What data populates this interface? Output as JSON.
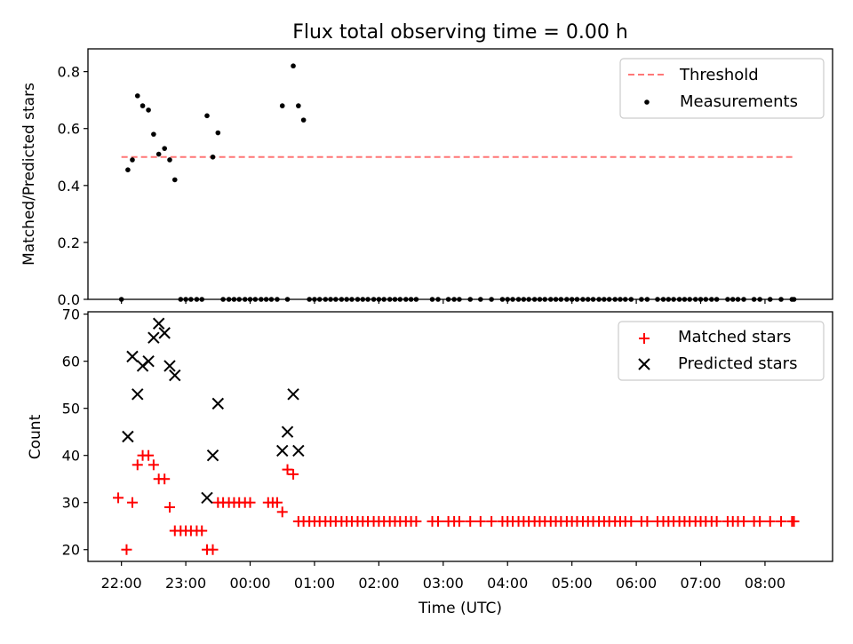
{
  "chart_data": {
    "title": "Flux total observing time = 0.00 h",
    "xlabel": "Time (UTC)",
    "x_ticks": [
      "22:00",
      "23:00",
      "00:00",
      "01:00",
      "02:00",
      "03:00",
      "04:00",
      "05:00",
      "06:00",
      "07:00",
      "08:00"
    ],
    "x_ticks_hours": [
      0,
      1,
      2,
      3,
      4,
      5,
      6,
      7,
      8,
      9,
      10
    ],
    "x_axis_note": "hours after 22:00 UTC",
    "xlim": [
      -0.52,
      11.05
    ],
    "panels": [
      {
        "type": "scatter",
        "ylabel": "Matched/Predicted stars",
        "ylim": [
          0.0,
          0.88
        ],
        "y_ticks": [
          "0.0",
          "0.2",
          "0.4",
          "0.6",
          "0.8"
        ],
        "y_tick_values": [
          0.0,
          0.2,
          0.4,
          0.6,
          0.8
        ],
        "legend_position": "top-right",
        "threshold": {
          "name": "Threshold",
          "value": 0.5,
          "x_range": [
            0.0,
            10.45
          ],
          "color": "#ff7777",
          "style": "dashed"
        },
        "measurements": {
          "name": "Measurements",
          "color": "#000000",
          "x": [
            0.0,
            0.1,
            0.17,
            0.25,
            0.33,
            0.42,
            0.5,
            0.58,
            0.67,
            0.75,
            0.83,
            0.92,
            1.0,
            1.08,
            1.17,
            1.25,
            1.33,
            1.42,
            1.5,
            1.58,
            1.67,
            1.75,
            1.83,
            1.92,
            2.0,
            2.08,
            2.17,
            2.25,
            2.33,
            2.42,
            2.5,
            2.58,
            2.67,
            2.75,
            2.83,
            2.92,
            3.0,
            3.08,
            3.17,
            3.25,
            3.33,
            3.42,
            3.5,
            3.58,
            3.67,
            3.75,
            3.83,
            3.92,
            4.0,
            4.08,
            4.17,
            4.25,
            4.33,
            4.42,
            4.5,
            4.58,
            4.83,
            4.92,
            5.08,
            5.17,
            5.25,
            5.42,
            5.58,
            5.75,
            5.92,
            6.0,
            6.08,
            6.17,
            6.25,
            6.33,
            6.42,
            6.5,
            6.58,
            6.67,
            6.75,
            6.83,
            6.92,
            7.0,
            7.08,
            7.17,
            7.25,
            7.33,
            7.42,
            7.5,
            7.58,
            7.67,
            7.75,
            7.83,
            7.92,
            8.08,
            8.17,
            8.33,
            8.42,
            8.5,
            8.58,
            8.67,
            8.75,
            8.83,
            8.92,
            9.0,
            9.08,
            9.17,
            9.25,
            9.42,
            9.5,
            9.58,
            9.67,
            9.83,
            9.92,
            10.08,
            10.25,
            10.42,
            10.45
          ],
          "y": [
            0.0,
            0.455,
            0.49,
            0.715,
            0.68,
            0.665,
            0.58,
            0.51,
            0.53,
            0.49,
            0.42,
            0.0,
            0.0,
            0.0,
            0.0,
            0.0,
            0.645,
            0.5,
            0.585,
            0.0,
            0.0,
            0.0,
            0.0,
            0.0,
            0.0,
            0.0,
            0.0,
            0.0,
            0.0,
            0.0,
            0.68,
            0.0,
            0.82,
            0.68,
            0.63,
            0.0,
            0.0,
            0.0,
            0.0,
            0.0,
            0.0,
            0.0,
            0.0,
            0.0,
            0.0,
            0.0,
            0.0,
            0.0,
            0.0,
            0.0,
            0.0,
            0.0,
            0.0,
            0.0,
            0.0,
            0.0,
            0.0,
            0.0,
            0.0,
            0.0,
            0.0,
            0.0,
            0.0,
            0.0,
            0.0,
            0.0,
            0.0,
            0.0,
            0.0,
            0.0,
            0.0,
            0.0,
            0.0,
            0.0,
            0.0,
            0.0,
            0.0,
            0.0,
            0.0,
            0.0,
            0.0,
            0.0,
            0.0,
            0.0,
            0.0,
            0.0,
            0.0,
            0.0,
            0.0,
            0.0,
            0.0,
            0.0,
            0.0,
            0.0,
            0.0,
            0.0,
            0.0,
            0.0,
            0.0,
            0.0,
            0.0,
            0.0,
            0.0,
            0.0,
            0.0,
            0.0,
            0.0,
            0.0,
            0.0,
            0.0,
            0.0,
            0.0,
            0.0
          ]
        }
      },
      {
        "type": "scatter",
        "ylabel": "Count",
        "ylim": [
          17.5,
          70.5
        ],
        "y_ticks": [
          "20",
          "30",
          "40",
          "50",
          "60",
          "70"
        ],
        "y_tick_values": [
          20,
          30,
          40,
          50,
          60,
          70
        ],
        "legend_position": "top-right",
        "series": [
          {
            "name": "Matched stars",
            "marker": "plus",
            "color": "#ff0000",
            "x": [
              -0.05,
              0.08,
              0.17,
              0.25,
              0.33,
              0.42,
              0.5,
              0.58,
              0.67,
              0.75,
              0.83,
              0.92,
              1.0,
              1.08,
              1.17,
              1.25,
              1.33,
              1.42,
              1.5,
              1.58,
              1.67,
              1.75,
              1.83,
              1.92,
              2.0,
              2.28,
              2.35,
              2.42,
              2.5,
              2.58,
              2.67,
              2.75,
              2.83,
              2.92,
              3.0,
              3.08,
              3.17,
              3.25,
              3.33,
              3.42,
              3.5,
              3.58,
              3.67,
              3.75,
              3.83,
              3.92,
              4.0,
              4.08,
              4.17,
              4.25,
              4.33,
              4.42,
              4.5,
              4.58,
              4.83,
              4.92,
              5.08,
              5.17,
              5.25,
              5.42,
              5.58,
              5.75,
              5.92,
              6.0,
              6.08,
              6.17,
              6.25,
              6.33,
              6.42,
              6.5,
              6.58,
              6.67,
              6.75,
              6.83,
              6.92,
              7.0,
              7.08,
              7.17,
              7.25,
              7.33,
              7.42,
              7.5,
              7.58,
              7.67,
              7.75,
              7.83,
              7.92,
              8.08,
              8.17,
              8.33,
              8.42,
              8.5,
              8.58,
              8.67,
              8.75,
              8.83,
              8.92,
              9.0,
              9.08,
              9.17,
              9.25,
              9.42,
              9.5,
              9.58,
              9.67,
              9.83,
              9.92,
              10.08,
              10.25,
              10.42,
              10.45
            ],
            "y": [
              31,
              20,
              30,
              38,
              40,
              40,
              38,
              35,
              35,
              29,
              24,
              24,
              24,
              24,
              24,
              24,
              20,
              20,
              30,
              30,
              30,
              30,
              30,
              30,
              30,
              30,
              30,
              30,
              28,
              37,
              36,
              26,
              26,
              26,
              26,
              26,
              26,
              26,
              26,
              26,
              26,
              26,
              26,
              26,
              26,
              26,
              26,
              26,
              26,
              26,
              26,
              26,
              26,
              26,
              26,
              26,
              26,
              26,
              26,
              26,
              26,
              26,
              26,
              26,
              26,
              26,
              26,
              26,
              26,
              26,
              26,
              26,
              26,
              26,
              26,
              26,
              26,
              26,
              26,
              26,
              26,
              26,
              26,
              26,
              26,
              26,
              26,
              26,
              26,
              26,
              26,
              26,
              26,
              26,
              26,
              26,
              26,
              26,
              26,
              26,
              26,
              26,
              26,
              26,
              26,
              26,
              26,
              26,
              26,
              26,
              26
            ]
          },
          {
            "name": "Predicted stars",
            "marker": "x",
            "color": "#000000",
            "x": [
              0.1,
              0.17,
              0.25,
              0.33,
              0.42,
              0.5,
              0.58,
              0.67,
              0.75,
              0.83,
              1.33,
              1.42,
              1.5,
              2.5,
              2.58,
              2.67,
              2.75
            ],
            "y": [
              44,
              61,
              53,
              59,
              60,
              65,
              68,
              66,
              59,
              57,
              31,
              40,
              51,
              41,
              45,
              53,
              41
            ]
          }
        ]
      }
    ]
  }
}
